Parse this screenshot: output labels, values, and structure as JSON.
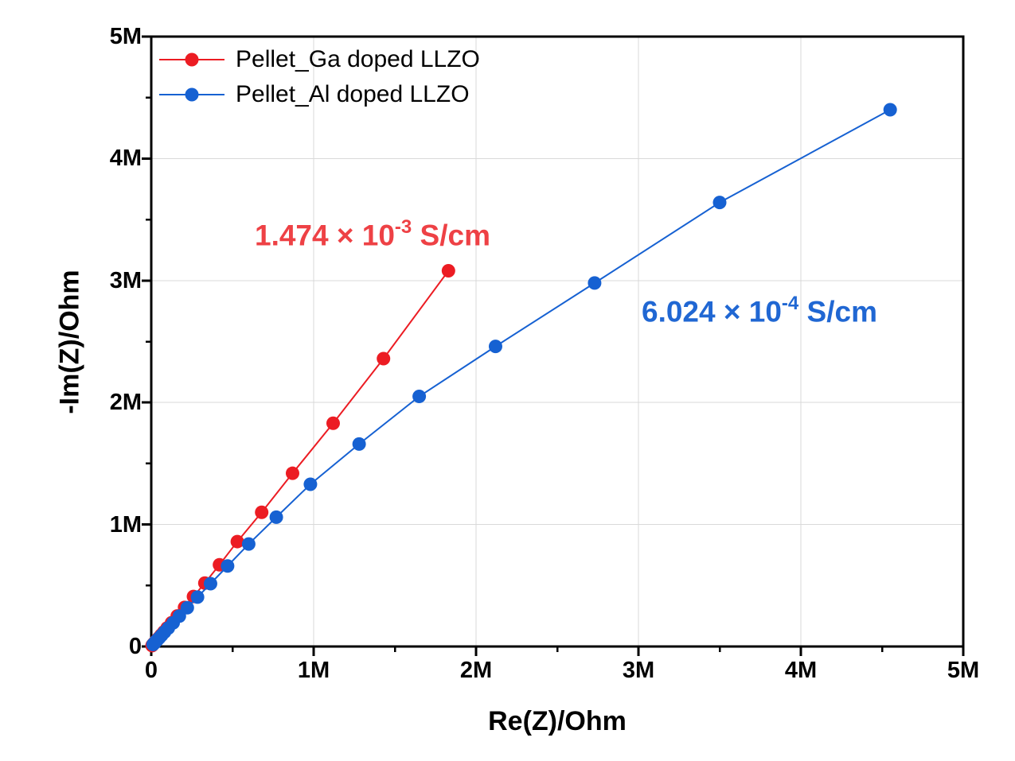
{
  "chart_data": {
    "type": "scatter",
    "title": "",
    "xlabel": "Re(Z)/Ohm",
    "ylabel": "-Im(Z)/Ohm",
    "xlim": [
      0,
      5000000
    ],
    "ylim": [
      0,
      5000000
    ],
    "grid": true,
    "grid_color": "#d9d9d9",
    "frame_color": "#000000",
    "minor_tick_step": 500000,
    "x_ticks": [
      {
        "value": 0,
        "label": "0"
      },
      {
        "value": 1000000,
        "label": "1M"
      },
      {
        "value": 2000000,
        "label": "2M"
      },
      {
        "value": 3000000,
        "label": "3M"
      },
      {
        "value": 4000000,
        "label": "4M"
      },
      {
        "value": 5000000,
        "label": "5M"
      }
    ],
    "y_ticks": [
      {
        "value": 0,
        "label": "0"
      },
      {
        "value": 1000000,
        "label": "1M"
      },
      {
        "value": 2000000,
        "label": "2M"
      },
      {
        "value": 3000000,
        "label": "3M"
      },
      {
        "value": 4000000,
        "label": "4M"
      },
      {
        "value": 5000000,
        "label": "5M"
      }
    ],
    "series": [
      {
        "id": "ga",
        "name": "Pellet_Ga doped LLZO",
        "color": "#ec1c23",
        "marker": "circle",
        "points": [
          [
            5000,
            7000
          ],
          [
            6000,
            9000
          ],
          [
            8000,
            12000
          ],
          [
            10000,
            16000
          ],
          [
            13000,
            21000
          ],
          [
            17000,
            27000
          ],
          [
            22000,
            34000
          ],
          [
            29000,
            44000
          ],
          [
            37000,
            57000
          ],
          [
            47000,
            72000
          ],
          [
            60000,
            93000
          ],
          [
            77000,
            119000
          ],
          [
            98000,
            152000
          ],
          [
            125000,
            195000
          ],
          [
            160000,
            250000
          ],
          [
            205000,
            320000
          ],
          [
            260000,
            410000
          ],
          [
            330000,
            520000
          ],
          [
            420000,
            670000
          ],
          [
            530000,
            860000
          ],
          [
            680000,
            1100000
          ],
          [
            870000,
            1420000
          ],
          [
            1120000,
            1830000
          ],
          [
            1430000,
            2360000
          ],
          [
            1830000,
            3080000
          ]
        ]
      },
      {
        "id": "al",
        "name": "Pellet_Al doped LLZO",
        "color": "#1661d2",
        "marker": "circle",
        "points": [
          [
            11000,
            16000
          ],
          [
            15000,
            21000
          ],
          [
            19000,
            27000
          ],
          [
            24000,
            34000
          ],
          [
            30000,
            44000
          ],
          [
            39000,
            56000
          ],
          [
            50000,
            72000
          ],
          [
            64000,
            92000
          ],
          [
            82000,
            118000
          ],
          [
            105000,
            151000
          ],
          [
            135000,
            194000
          ],
          [
            173000,
            249000
          ],
          [
            222000,
            318000
          ],
          [
            285000,
            405000
          ],
          [
            365000,
            515000
          ],
          [
            470000,
            660000
          ],
          [
            600000,
            840000
          ],
          [
            770000,
            1060000
          ],
          [
            980000,
            1330000
          ],
          [
            1280000,
            1660000
          ],
          [
            1650000,
            2050000
          ],
          [
            2120000,
            2460000
          ],
          [
            2730000,
            2980000
          ],
          [
            3500000,
            3640000
          ],
          [
            4550000,
            4400000
          ]
        ]
      }
    ],
    "annotations": [
      {
        "id": "ga",
        "prefix": "1.474 × 10",
        "exponent": "-3",
        "suffix": " S/cm",
        "color": "#ee4145"
      },
      {
        "id": "al",
        "prefix": "6.024 × 10",
        "exponent": "-4",
        "suffix": " S/cm",
        "color": "#2067d3"
      }
    ]
  },
  "legend": {
    "items": [
      {
        "label": "Pellet_Ga doped LLZO",
        "color": "#ec1c23"
      },
      {
        "label": "Pellet_Al doped LLZO",
        "color": "#1661d2"
      }
    ]
  }
}
